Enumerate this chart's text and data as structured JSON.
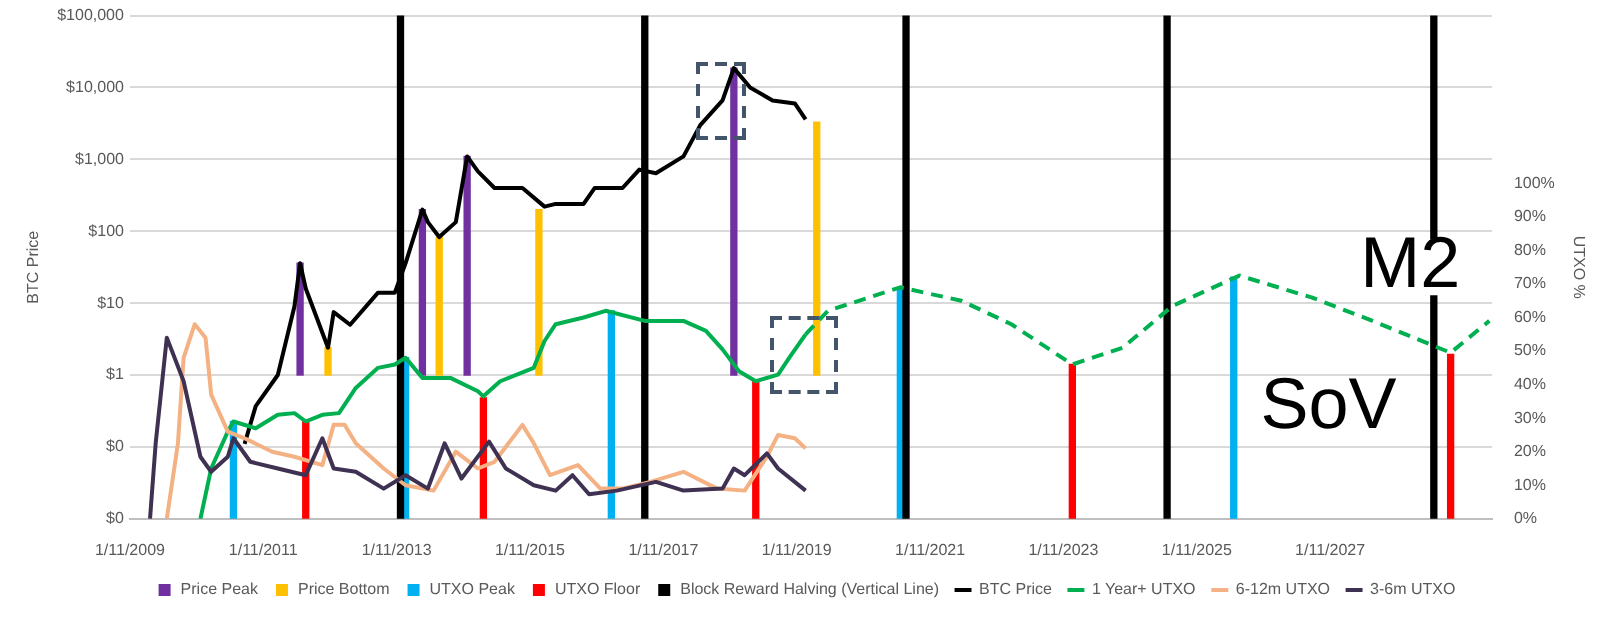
{
  "chart_data": {
    "type": "line",
    "ylabel": "BTC Price",
    "y2label": "UTXO %",
    "xlim": [
      "2009-01-11",
      "2029-06-15"
    ],
    "xticks": [
      {
        "value": "2009-01-11",
        "label": "1/11/2009"
      },
      {
        "value": "2011-01-11",
        "label": "1/11/2011"
      },
      {
        "value": "2013-01-11",
        "label": "1/11/2013"
      },
      {
        "value": "2015-01-11",
        "label": "1/11/2015"
      },
      {
        "value": "2017-01-11",
        "label": "1/11/2017"
      },
      {
        "value": "2019-01-11",
        "label": "1/11/2019"
      },
      {
        "value": "2021-01-11",
        "label": "1/11/2021"
      },
      {
        "value": "2023-01-11",
        "label": "1/11/2023"
      },
      {
        "value": "2025-01-11",
        "label": "1/11/2025"
      },
      {
        "value": "2027-01-11",
        "label": "1/11/2027"
      }
    ],
    "log": "y",
    "ylim": [
      0.01,
      100000
    ],
    "yticks": [
      {
        "value": 0.01,
        "label": "$0"
      },
      {
        "value": 0.1,
        "label": "$0"
      },
      {
        "value": 1,
        "label": "$1"
      },
      {
        "value": 10,
        "label": "$10"
      },
      {
        "value": 100,
        "label": "$100"
      },
      {
        "value": 1000,
        "label": "$1,000"
      },
      {
        "value": 10000,
        "label": "$10,000"
      },
      {
        "value": 100000,
        "label": "$100,000"
      }
    ],
    "y2lim": [
      0,
      150
    ],
    "y2ticks": [
      {
        "value": 0,
        "label": "0%"
      },
      {
        "value": 10,
        "label": "10%"
      },
      {
        "value": 20,
        "label": "20%"
      },
      {
        "value": 30,
        "label": "30%"
      },
      {
        "value": 40,
        "label": "40%"
      },
      {
        "value": 50,
        "label": "50%"
      },
      {
        "value": 60,
        "label": "60%"
      },
      {
        "value": 70,
        "label": "70%"
      },
      {
        "value": 80,
        "label": "80%"
      },
      {
        "value": 90,
        "label": "90%"
      },
      {
        "value": 100,
        "label": "100%"
      }
    ],
    "grid": "y",
    "legend": "bottom",
    "marker": "none",
    "annotations": [
      "M2",
      "SoV"
    ],
    "series": [
      {
        "name": "Price Peak",
        "type": "bar",
        "color": "#7030a0",
        "x": [
          "2011-08",
          "2013-06",
          "2014-02",
          "2018-02"
        ],
        "base": [
          1,
          1,
          1,
          1
        ],
        "values": [
          35,
          199,
          1099,
          18599
        ]
      },
      {
        "name": "Price Bottom",
        "type": "bar",
        "color": "#ffc000",
        "x": [
          "2012-01",
          "2013-09",
          "2015-03",
          "2019-05"
        ],
        "base": [
          1,
          1,
          1,
          1
        ],
        "values": [
          1.4,
          82,
          199,
          3299
        ]
      },
      {
        "name": "UTXO Peak",
        "type": "bar",
        "axis": "y2",
        "color": "#00b0f0",
        "x": [
          "2010-08",
          "2013-03",
          "2016-04",
          "2020-08",
          "2025-08"
        ],
        "base": [
          0,
          0,
          0,
          0,
          0
        ],
        "values": [
          29,
          48,
          62,
          69,
          72
        ]
      },
      {
        "name": "UTXO Floor",
        "type": "bar",
        "axis": "y2",
        "color": "#ff0000",
        "x": [
          "2011-09",
          "2014-05",
          "2018-06",
          "2023-03",
          "2028-11"
        ],
        "base": [
          0,
          0,
          0,
          0,
          0
        ],
        "values": [
          29,
          36,
          41,
          46,
          49
        ]
      },
      {
        "name": "Block Reward Halving (Vertical Line)",
        "type": "bar",
        "color": "#000000",
        "x": [
          "2013-02",
          "2016-10",
          "2020-09",
          "2024-08",
          "2028-08"
        ],
        "base": [
          0.01,
          0.01,
          0.01,
          0.01,
          0.01
        ],
        "values": [
          99999.99,
          99999.99,
          99999.99,
          99999.99,
          99999.99
        ]
      },
      {
        "name": "BTC Price",
        "type": "line",
        "color": "#000000",
        "x": [
          "2010-10",
          "2010-12",
          "2011-04",
          "2011-07",
          "2011-08",
          "2011-09",
          "2012-01",
          "2012-02",
          "2012-05",
          "2012-10",
          "2013-01",
          "2013-03",
          "2013-06",
          "2013-07",
          "2013-09",
          "2013-12",
          "2014-02",
          "2014-04",
          "2014-07",
          "2014-12",
          "2015-04",
          "2015-06",
          "2015-11",
          "2016-01",
          "2016-06",
          "2016-09",
          "2016-12",
          "2017-05",
          "2017-08",
          "2017-12",
          "2018-02",
          "2018-05",
          "2018-09",
          "2019-01",
          "2019-03"
        ],
        "values": [
          0.11,
          0.37,
          1,
          9,
          36,
          16,
          2.4,
          7.5,
          5,
          14,
          14,
          36,
          200,
          134,
          83,
          134,
          1100,
          680,
          400,
          400,
          220,
          240,
          240,
          400,
          400,
          720,
          640,
          1100,
          3000,
          6600,
          18600,
          10000,
          6600,
          6000,
          3600
        ]
      },
      {
        "name": "1 Year+ UTXO",
        "type": "line",
        "axis": "y2",
        "color": "#00b050",
        "x": [
          "2010-02",
          "2010-04",
          "2010-07",
          "2010-08",
          "2010-12",
          "2011-04",
          "2011-07",
          "2011-09",
          "2011-12",
          "2012-03",
          "2012-06",
          "2012-10",
          "2013-01",
          "2013-03",
          "2013-06",
          "2013-11",
          "2014-04",
          "2014-05",
          "2014-08",
          "2015-02",
          "2015-04",
          "2015-06",
          "2015-11",
          "2016-03",
          "2016-10",
          "2017-05",
          "2017-09",
          "2017-12",
          "2018-03",
          "2018-06",
          "2018-10",
          "2018-12",
          "2019-03"
        ],
        "values": [
          0,
          15,
          26,
          29,
          27,
          31,
          31.5,
          29,
          31,
          31.5,
          39,
          45,
          46,
          48,
          42,
          42,
          38,
          36.5,
          41,
          45,
          53,
          58,
          60,
          62,
          59,
          59,
          56,
          50.5,
          44,
          41,
          43,
          48,
          55
        ]
      },
      {
        "name": "6-12m UTXO",
        "type": "line",
        "axis": "y2",
        "color": "#f4b183",
        "x": [
          "2009-08",
          "2009-10",
          "2009-11",
          "2010-01",
          "2010-03",
          "2010-04",
          "2010-07",
          "2010-10",
          "2011-03",
          "2011-07",
          "2011-12",
          "2012-02",
          "2012-04",
          "2012-06",
          "2012-11",
          "2013-03",
          "2013-08",
          "2013-12",
          "2014-04",
          "2014-07",
          "2014-12",
          "2015-02",
          "2015-05",
          "2015-10",
          "2016-02",
          "2016-06",
          "2016-11",
          "2017-05",
          "2017-11",
          "2018-04",
          "2018-08",
          "2018-10",
          "2019-01",
          "2019-03"
        ],
        "values": [
          0,
          22.5,
          48,
          58,
          54,
          37,
          26,
          24,
          20,
          18.5,
          16,
          28,
          28,
          22.5,
          15,
          10,
          8.4,
          20,
          15,
          17,
          28,
          22.5,
          13,
          16,
          9,
          9,
          11,
          14,
          9,
          8.4,
          18.5,
          25,
          24,
          21
        ]
      },
      {
        "name": "3-6m UTXO",
        "type": "line",
        "axis": "y2",
        "color": "#3f3151",
        "x": [
          "2009-05",
          "2009-06",
          "2009-08",
          "2009-11",
          "2010-02",
          "2010-04",
          "2010-07",
          "2010-08",
          "2010-11",
          "2011-04",
          "2011-09",
          "2011-12",
          "2012-02",
          "2012-06",
          "2012-11",
          "2013-03",
          "2013-07",
          "2013-10",
          "2014-01",
          "2014-06",
          "2014-09",
          "2015-02",
          "2015-06",
          "2015-09",
          "2015-12",
          "2016-05",
          "2016-12",
          "2017-05",
          "2017-12",
          "2018-02",
          "2018-04",
          "2018-08",
          "2018-10",
          "2019-03"
        ],
        "values": [
          0,
          22.5,
          54,
          41,
          18.5,
          14,
          18.5,
          24,
          17,
          15,
          13,
          24,
          15,
          14,
          9,
          13,
          9,
          22.5,
          12,
          23,
          15,
          10,
          8.4,
          13,
          7.3,
          8.4,
          11,
          8.4,
          9,
          15,
          13,
          19.5,
          15,
          8.4
        ]
      },
      {
        "axis": "y2",
        "color": "#00b050",
        "line_style": "dashed",
        "x": [
          "2019-03",
          "2019-07",
          "2020-08",
          "2021-07",
          "2022-04",
          "2023-03",
          "2023-12",
          "2024-09",
          "2025-09",
          "2026-10",
          "2027-09",
          "2028-11",
          "2029-06"
        ],
        "values": [
          55,
          62,
          69,
          65,
          58,
          46,
          51,
          63.5,
          72.5,
          66,
          59,
          49.5,
          59
        ]
      }
    ]
  }
}
